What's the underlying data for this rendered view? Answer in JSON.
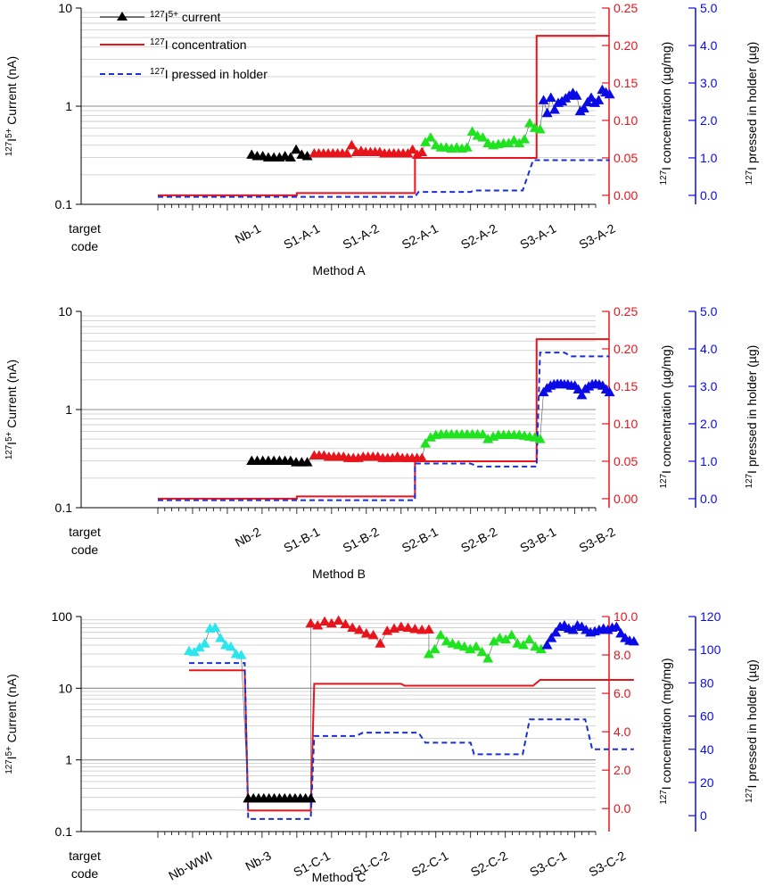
{
  "legend": {
    "current": "127I5+ current",
    "concentration": "127I concentration",
    "pressed": "127I pressed in holder"
  },
  "colors": {
    "black": "#000000",
    "red": "#e8141c",
    "green": "#1fe31f",
    "blue": "#0a0ae6",
    "cyan": "#2ce6ee",
    "dash": "#1a2fd9",
    "gridMajor": "#8c8c8c",
    "gridMinor": "#c8c8c8"
  },
  "chart_data": [
    {
      "type": "line",
      "title": "Method A",
      "xlabel": "Method A",
      "ylabel": "127I5+ Current (nA)",
      "yscale": "log",
      "ylim": [
        0.1,
        10
      ],
      "y_ticks": [
        "0.1",
        "1",
        "10"
      ],
      "y2label": "127I concentration (µg/mg)",
      "y2lim": [
        -0.012,
        0.25
      ],
      "y2_ticks": [
        "0.00",
        "0.05",
        "0.10",
        "0.15",
        "0.20",
        "0.25"
      ],
      "y3label": "127I pressed in holder (µg)",
      "y3lim": [
        -0.24,
        5.0
      ],
      "y3_ticks": [
        "0.0",
        "1.0",
        "2.0",
        "3.0",
        "4.0",
        "5.0"
      ],
      "xlim": [
        0,
        126
      ],
      "category_labels": [
        {
          "label": "target code",
          "x": 0
        },
        {
          "label": "Nb-1",
          "x": 28
        },
        {
          "label": "S1-A-1",
          "x": 45
        },
        {
          "label": "S1-A-2",
          "x": 62
        },
        {
          "label": "S2-A-1",
          "x": 79
        },
        {
          "label": "S2-A-2",
          "x": 96
        },
        {
          "label": "S3-A-1",
          "x": 113
        },
        {
          "label": "S3-A-2",
          "x": 130
        }
      ],
      "current_series": [
        {
          "name": "Nb-1",
          "color": "black",
          "x0": 27,
          "x1": 43,
          "values": [
            0.32,
            0.31,
            0.31,
            0.3,
            0.3,
            0.3,
            0.31,
            0.3,
            0.36,
            0.32,
            0.31
          ]
        },
        {
          "name": "S1-A",
          "color": "red",
          "x0": 45,
          "x1": 76,
          "values": [
            0.33,
            0.33,
            0.33,
            0.33,
            0.33,
            0.33,
            0.33,
            0.33,
            0.4,
            0.34,
            0.35,
            0.34,
            0.34,
            0.34,
            0.34,
            0.33,
            0.33,
            0.33,
            0.33,
            0.33,
            0.33,
            0.36,
            0.32,
            0.34
          ]
        },
        {
          "name": "S2-A",
          "color": "green",
          "x0": 77,
          "x1": 110,
          "values": [
            0.43,
            0.48,
            0.4,
            0.38,
            0.38,
            0.37,
            0.38,
            0.37,
            0.38,
            0.55,
            0.5,
            0.48,
            0.42,
            0.4,
            0.41,
            0.42,
            0.42,
            0.45,
            0.42,
            0.46,
            0.67,
            0.6,
            0.58
          ]
        },
        {
          "name": "S3-A",
          "color": "blue",
          "x0": 111,
          "x1": 130,
          "values": [
            1.15,
            0.85,
            1.22,
            0.92,
            1.08,
            1.12,
            1.2,
            1.28,
            1.36,
            1.28,
            0.89,
            0.95,
            1.1,
            1.22,
            1.08,
            1.15,
            1.47,
            1.38,
            1.32
          ]
        }
      ],
      "concentration": {
        "x": [
          0,
          40,
          40,
          74,
          74,
          109,
          109,
          130
        ],
        "y": [
          0.0,
          0.0,
          0.003,
          0.003,
          0.05,
          0.05,
          0.213,
          0.213
        ]
      },
      "pressed": {
        "x": [
          0,
          74,
          75,
          90,
          91,
          105,
          108,
          130
        ],
        "y": [
          -0.04,
          -0.04,
          0.09,
          0.09,
          0.13,
          0.13,
          0.94,
          0.94
        ]
      }
    },
    {
      "type": "line",
      "title": "Method B",
      "xlabel": "Method B",
      "ylabel": "127I5+ Current (nA)",
      "yscale": "log",
      "ylim": [
        0.1,
        10
      ],
      "y_ticks": [
        "0.1",
        "1",
        "10"
      ],
      "y2label": "127I concentration (µg/mg)",
      "y2lim": [
        -0.012,
        0.25
      ],
      "y2_ticks": [
        "0.00",
        "0.05",
        "0.10",
        "0.15",
        "0.20",
        "0.25"
      ],
      "y3label": "127I pressed in holder (µg)",
      "y3lim": [
        -0.24,
        5.0
      ],
      "y3_ticks": [
        "0.0",
        "1.0",
        "2.0",
        "3.0",
        "4.0",
        "5.0"
      ],
      "xlim": [
        0,
        126
      ],
      "category_labels": [
        {
          "label": "target code",
          "x": 0
        },
        {
          "label": "Nb-2",
          "x": 28
        },
        {
          "label": "S1-B-1",
          "x": 45
        },
        {
          "label": "S1-B-2",
          "x": 62
        },
        {
          "label": "S2-B-1",
          "x": 79
        },
        {
          "label": "S2-B-2",
          "x": 96
        },
        {
          "label": "S3-B-1",
          "x": 113
        },
        {
          "label": "S3-B-2",
          "x": 130
        }
      ],
      "current_series": [
        {
          "name": "Nb-2",
          "color": "black",
          "x0": 27,
          "x1": 43,
          "values": [
            0.3,
            0.3,
            0.3,
            0.3,
            0.3,
            0.3,
            0.3,
            0.3,
            0.29,
            0.29,
            0.29
          ]
        },
        {
          "name": "S1-B",
          "color": "red",
          "x0": 45,
          "x1": 76,
          "values": [
            0.34,
            0.34,
            0.34,
            0.33,
            0.33,
            0.33,
            0.33,
            0.32,
            0.32,
            0.32,
            0.33,
            0.33,
            0.33,
            0.33,
            0.32,
            0.32,
            0.32,
            0.33,
            0.32,
            0.32,
            0.32,
            0.32,
            0.32
          ]
        },
        {
          "name": "S2-B",
          "color": "green",
          "x0": 77,
          "x1": 110,
          "values": [
            0.45,
            0.52,
            0.55,
            0.56,
            0.56,
            0.56,
            0.56,
            0.56,
            0.56,
            0.56,
            0.56,
            0.56,
            0.5,
            0.53,
            0.55,
            0.55,
            0.55,
            0.55,
            0.55,
            0.54,
            0.53,
            0.52,
            0.5
          ]
        },
        {
          "name": "S3-B",
          "color": "blue",
          "x0": 111,
          "x1": 130,
          "values": [
            1.5,
            1.65,
            1.75,
            1.8,
            1.82,
            1.82,
            1.8,
            1.8,
            1.75,
            1.75,
            1.6,
            1.4,
            1.62,
            1.72,
            1.8,
            1.82,
            1.8,
            1.75,
            1.6,
            1.5
          ]
        }
      ],
      "concentration": {
        "x": [
          0,
          40,
          40,
          74,
          74,
          109,
          109,
          130
        ],
        "y": [
          0.0,
          0.0,
          0.003,
          0.003,
          0.05,
          0.05,
          0.213,
          0.213
        ]
      },
      "pressed": {
        "x": [
          0,
          74,
          74,
          90,
          92,
          109,
          110,
          117,
          119,
          130
        ],
        "y": [
          -0.04,
          -0.04,
          0.94,
          0.94,
          0.86,
          0.86,
          3.9,
          3.9,
          3.8,
          3.8
        ]
      }
    },
    {
      "type": "line",
      "title": "Method C",
      "xlabel": "Method C",
      "ylabel": "127I5+ Current (nA)",
      "yscale": "log",
      "ylim": [
        0.1,
        100
      ],
      "y_ticks": [
        "0.1",
        "1",
        "10",
        "100"
      ],
      "y2label": "127I concentration (mg/mg)",
      "y2lim": [
        -1.2,
        10.0
      ],
      "y2_ticks": [
        "0.0",
        "2.0",
        "4.0",
        "6.0",
        "8.0",
        "10.0"
      ],
      "y3label": "127I pressed in holder (µg)",
      "y3lim": [
        -9.6,
        120
      ],
      "y3_ticks": [
        "0",
        "20",
        "40",
        "60",
        "80",
        "100",
        "120"
      ],
      "xlim": [
        0,
        126
      ],
      "category_labels": [
        {
          "label": "target code",
          "x": 0
        },
        {
          "label": "Nb-WWI",
          "x": 14
        },
        {
          "label": "Nb-3",
          "x": 31
        },
        {
          "label": "S1-C-1",
          "x": 48
        },
        {
          "label": "S1-C-2",
          "x": 65
        },
        {
          "label": "S2-C-1",
          "x": 82
        },
        {
          "label": "S2-C-2",
          "x": 99
        },
        {
          "label": "S3-C-1",
          "x": 116
        },
        {
          "label": "S3-C-2",
          "x": 133
        }
      ],
      "current_series": [
        {
          "name": "Nb-WWI",
          "color": "cyan",
          "x0": 9,
          "x1": 24,
          "values": [
            33,
            32,
            37,
            42,
            68,
            70,
            50,
            40,
            38,
            30,
            29
          ]
        },
        {
          "name": "Nb-3",
          "color": "black",
          "x0": 26,
          "x1": 44,
          "values": [
            0.29,
            0.29,
            0.29,
            0.29,
            0.29,
            0.29,
            0.29,
            0.29,
            0.29,
            0.29,
            0.29,
            0.29,
            0.29
          ]
        },
        {
          "name": "S1-C",
          "color": "red",
          "x0": 44,
          "x1": 78,
          "values": [
            80,
            75,
            85,
            80,
            88,
            78,
            70,
            65,
            58,
            55,
            42,
            63,
            68,
            72,
            70,
            67,
            65,
            66
          ]
        },
        {
          "name": "S2-C",
          "color": "green",
          "x0": 78,
          "x1": 112,
          "values": [
            30,
            35,
            55,
            45,
            42,
            40,
            38,
            35,
            38,
            32,
            26,
            45,
            50,
            48,
            55,
            42,
            40,
            48,
            38,
            35,
            40
          ]
        },
        {
          "name": "S3-C",
          "color": "blue",
          "x0": 112,
          "x1": 137,
          "values": [
            40,
            50,
            60,
            72,
            75,
            68,
            65,
            75,
            72,
            65,
            60,
            62,
            65,
            68,
            65,
            70,
            72,
            58,
            50,
            46,
            45
          ]
        }
      ],
      "concentration": {
        "x": [
          9,
          25,
          26,
          44,
          45,
          70,
          71,
          108,
          110,
          137
        ],
        "y": [
          7.2,
          7.2,
          -0.1,
          -0.1,
          6.5,
          6.5,
          6.4,
          6.4,
          6.7,
          6.7
        ]
      },
      "pressed": {
        "x": [
          9,
          25,
          26,
          44,
          45,
          57,
          59,
          75,
          77,
          90,
          91,
          105,
          107,
          123,
          125,
          137
        ],
        "y": [
          92,
          92,
          -2,
          -2,
          48,
          48,
          50,
          50,
          44,
          44,
          37,
          37,
          58,
          58,
          40,
          40
        ]
      }
    }
  ]
}
